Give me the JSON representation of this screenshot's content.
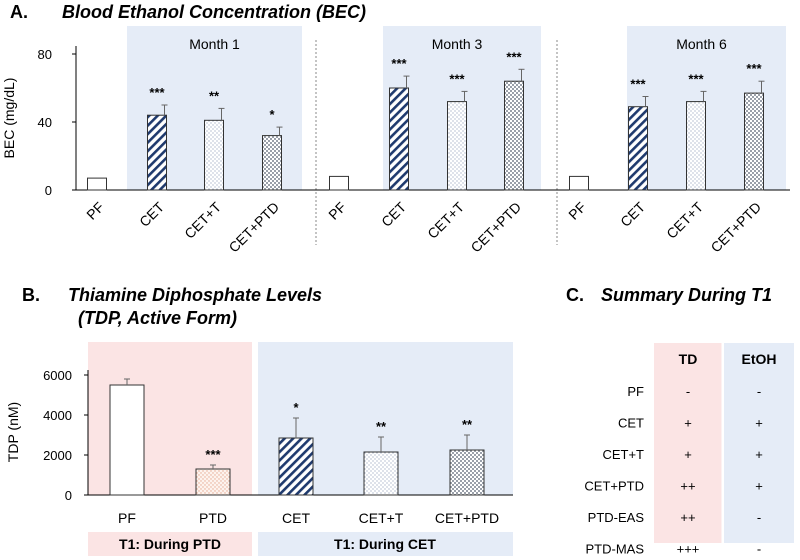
{
  "colors": {
    "pink": "#fbe4e4",
    "blue": "#e5ecf7",
    "hatch": "#1f3a6e",
    "dots": "#8a9ab5",
    "pinkdots": "#e6a891"
  },
  "panel_a": {
    "letter": "A.",
    "title": "Blood Ethanol Concentration (BEC)"
  },
  "panel_b": {
    "letter": "B.",
    "title_line1": "Thiamine Diphosphate Levels",
    "title_line2": "(TDP, Active Form)",
    "footer_left": "T1: During PTD",
    "footer_right": "T1: During CET"
  },
  "panel_c": {
    "letter": "C.",
    "title": "Summary During T1",
    "columns": [
      "TD",
      "EtOH"
    ],
    "rows": [
      {
        "label": "PF",
        "td": "-",
        "etoh": "-"
      },
      {
        "label": "CET",
        "td": "+",
        "etoh": "+"
      },
      {
        "label": "CET+T",
        "td": "+",
        "etoh": "+"
      },
      {
        "label": "CET+PTD",
        "td": "++",
        "etoh": "+"
      },
      {
        "label": "PTD-EAS",
        "td": "++",
        "etoh": "-"
      },
      {
        "label": "PTD-MAS",
        "td": "+++",
        "etoh": "-"
      }
    ]
  },
  "chart_data": [
    {
      "type": "bar",
      "title": "Blood Ethanol Concentration (BEC)",
      "ylabel": "BEC (mg/dL)",
      "ylim": [
        0,
        80
      ],
      "yticks": [
        0,
        40,
        80
      ],
      "groups": [
        {
          "name": "Month 1",
          "categories": [
            "PF",
            "CET",
            "CET+T",
            "CET+PTD"
          ],
          "values": [
            7,
            44,
            41,
            32
          ],
          "errors": [
            0,
            6,
            7,
            5
          ],
          "sig": [
            "",
            "***",
            "**",
            "*"
          ]
        },
        {
          "name": "Month 3",
          "categories": [
            "PF",
            "CET",
            "CET+T",
            "CET+PTD"
          ],
          "values": [
            8,
            60,
            52,
            64
          ],
          "errors": [
            0,
            7,
            6,
            7
          ],
          "sig": [
            "",
            "***",
            "***",
            "***"
          ]
        },
        {
          "name": "Month 6",
          "categories": [
            "PF",
            "CET",
            "CET+T",
            "CET+PTD"
          ],
          "values": [
            8,
            49,
            52,
            57
          ],
          "errors": [
            0,
            6,
            6,
            7
          ],
          "sig": [
            "",
            "***",
            "***",
            "***"
          ]
        }
      ]
    },
    {
      "type": "bar",
      "title": "Thiamine Diphosphate Levels (TDP, Active Form)",
      "ylabel": "TDP  (nM)",
      "ylim": [
        0,
        6000
      ],
      "yticks": [
        0,
        2000,
        4000,
        6000
      ],
      "categories": [
        "PF",
        "PTD",
        "CET",
        "CET+T",
        "CET+PTD"
      ],
      "values": [
        5500,
        1300,
        2850,
        2150,
        2250
      ],
      "errors": [
        300,
        200,
        1000,
        750,
        750
      ],
      "sig": [
        "",
        "***",
        "*",
        "**",
        "**"
      ]
    }
  ]
}
